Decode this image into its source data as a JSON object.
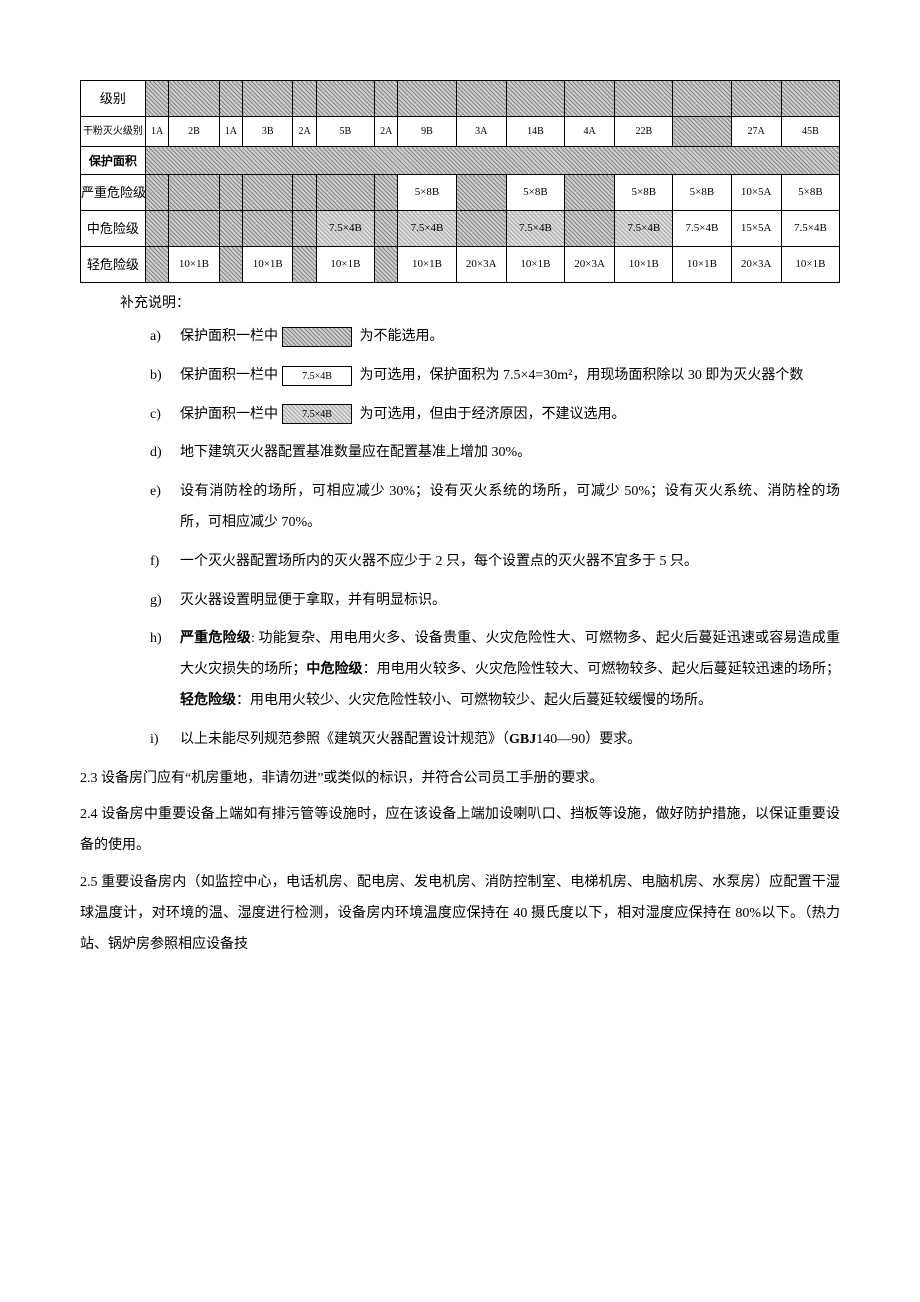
{
  "table": {
    "row_labels": [
      "级别",
      "干粉灭火级别",
      "保护面积",
      "严重危险级",
      "中危险级",
      "轻危险级"
    ],
    "cols": 15,
    "r1": [
      {
        "t": "1A",
        "h": false
      },
      {
        "t": "2B",
        "h": false
      },
      {
        "t": "1A",
        "h": false
      },
      {
        "t": "3B",
        "h": false
      },
      {
        "t": "2A",
        "h": false
      },
      {
        "t": "5B",
        "h": false
      },
      {
        "t": "2A",
        "h": false
      },
      {
        "t": "9B",
        "h": false
      },
      {
        "t": "3A",
        "h": false
      },
      {
        "t": "14B",
        "h": false
      },
      {
        "t": "4A",
        "h": false
      },
      {
        "t": "22B",
        "h": false
      },
      {
        "t": "",
        "h": true
      },
      {
        "t": "27A",
        "h": false
      },
      {
        "t": "45B",
        "h": false
      }
    ],
    "r3": [
      {
        "t": "",
        "h": true
      },
      {
        "t": "",
        "h": true
      },
      {
        "t": "",
        "h": true
      },
      {
        "t": "",
        "h": true
      },
      {
        "t": "",
        "h": true
      },
      {
        "t": "",
        "h": true
      },
      {
        "t": "",
        "h": true
      },
      {
        "t": "5×8B",
        "h": false
      },
      {
        "t": "",
        "h": true
      },
      {
        "t": "5×8B",
        "h": false
      },
      {
        "t": "",
        "h": true
      },
      {
        "t": "5×8B",
        "h": false
      },
      {
        "t": "5×8B",
        "h": false
      },
      {
        "t": "10×5A",
        "h": false
      },
      {
        "t": "5×8B",
        "h": false
      }
    ],
    "r4": [
      {
        "t": "",
        "h": true
      },
      {
        "t": "",
        "h": true
      },
      {
        "t": "",
        "h": true
      },
      {
        "t": "",
        "h": true
      },
      {
        "t": "",
        "h": true
      },
      {
        "t": "7.5×4B",
        "h": false,
        "hl": true
      },
      {
        "t": "",
        "h": true
      },
      {
        "t": "7.5×4B",
        "h": false,
        "hl": true
      },
      {
        "t": "",
        "h": true
      },
      {
        "t": "7.5×4B",
        "h": false,
        "hl": true
      },
      {
        "t": "",
        "h": true
      },
      {
        "t": "7.5×4B",
        "h": false,
        "hl": true
      },
      {
        "t": "7.5×4B",
        "h": false
      },
      {
        "t": "15×5A",
        "h": false
      },
      {
        "t": "7.5×4B",
        "h": false
      }
    ],
    "r5": [
      {
        "t": "",
        "h": true
      },
      {
        "t": "10×1B",
        "h": false
      },
      {
        "t": "",
        "h": true
      },
      {
        "t": "10×1B",
        "h": false
      },
      {
        "t": "",
        "h": true
      },
      {
        "t": "10×1B",
        "h": false
      },
      {
        "t": "",
        "h": true
      },
      {
        "t": "10×1B",
        "h": false
      },
      {
        "t": "20×3A",
        "h": false
      },
      {
        "t": "10×1B",
        "h": false
      },
      {
        "t": "20×3A",
        "h": false
      },
      {
        "t": "10×1B",
        "h": false
      },
      {
        "t": "10×1B",
        "h": false
      },
      {
        "t": "20×3A",
        "h": false
      },
      {
        "t": "10×1B",
        "h": false
      }
    ]
  },
  "notes": {
    "intro": "补充说明：",
    "items": [
      {
        "mk": "a)",
        "pre": "保护面积一栏中",
        "box_hatch": true,
        "box_text": "",
        "post": "为不能选用。"
      },
      {
        "mk": "b)",
        "pre": "保护面积一栏中",
        "box_hatch": false,
        "box_text": "7.5×4B",
        "post": "为可选用，保护面积为 7.5×4=30m²，用现场面积除以 30 即为灭火器个数"
      },
      {
        "mk": "c)",
        "pre": "保护面积一栏中",
        "box_hatch": true,
        "box_text": "7.5×4B",
        "post": "为可选用，但由于经济原因，不建议选用。"
      },
      {
        "mk": "d)",
        "text": "地下建筑灭火器配置基准数量应在配置基准上增加 30%。"
      },
      {
        "mk": "e)",
        "text": "设有消防栓的场所，可相应减少 30%；设有灭火系统的场所，可减少 50%；设有灭火系统、消防栓的场所，可相应减少 70%。"
      },
      {
        "mk": "f)",
        "text": "一个灭火器配置场所内的灭火器不应少于 2 只，每个设置点的灭火器不宜多于 5 只。"
      },
      {
        "mk": "g)",
        "text": "灭火器设置明显便于拿取，并有明显标识。"
      },
      {
        "mk": "h)",
        "html": "<span class=\"b\">严重危险级</span>: 功能复杂、用电用火多、设备贵重、火灾危险性大、可燃物多、起火后蔓延迅速或容易造成重大火灾损失的场所；<span class=\"b\">中危险级</span>：用电用火较多、火灾危险性较大、可燃物较多、起火后蔓延较迅速的场所；<span class=\"b\">轻危险级</span>：用电用火较少、火灾危险性较小、可燃物较少、起火后蔓延较缓慢的场所。"
      },
      {
        "mk": "i)",
        "html": "以上未能尽列规范参照《建筑灭火器配置设计规范》（<span class=\"b\">GBJ</span>140—90）要求。"
      }
    ]
  },
  "body": [
    "2.3 设备房门应有“机房重地，非请勿进”或类似的标识，并符合公司员工手册的要求。",
    "2.4 设备房中重要设备上端如有排污管等设施时，应在该设备上端加设喇叭口、挡板等设施，做好防护措施，以保证重要设备的使用。",
    "2.5 重要设备房内（如监控中心，电话机房、配电房、发电机房、消防控制室、电梯机房、电脑机房、水泵房）应配置干湿球温度计，对环境的温、湿度进行检测，设备房内环境温度应保持在 40 摄氏度以下，相对湿度应保持在 80%以下。（热力站、锅炉房参照相应设备技"
  ]
}
